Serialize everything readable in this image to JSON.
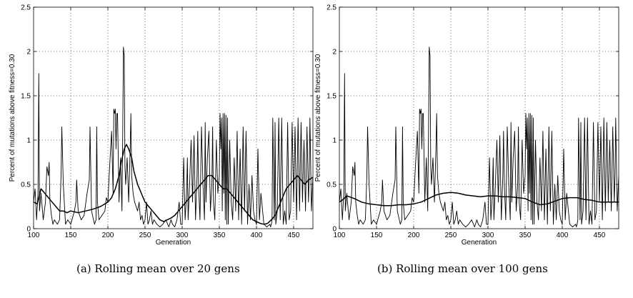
{
  "chart_data": [
    {
      "type": "line",
      "caption": "(a) Rolling mean over 20 gens",
      "xlabel": "Generation",
      "ylabel": "Percent of mutations above fitness=0.30",
      "xlim": [
        100,
        476
      ],
      "ylim": [
        0,
        2.5
      ],
      "xticks": [
        100,
        150,
        200,
        250,
        300,
        350,
        400,
        450
      ],
      "yticks": [
        0,
        0.5,
        1,
        1.5,
        2,
        2.5
      ],
      "ytick_labels": [
        "0",
        "0.5",
        "1",
        "1.5",
        "2",
        "2.5"
      ],
      "grid": true,
      "series": [
        {
          "x": [
            100,
            102,
            104,
            106,
            107,
            108,
            110,
            113,
            116,
            118,
            120,
            121,
            122,
            124,
            126,
            128,
            132,
            135,
            137,
            138,
            140,
            143,
            146,
            150,
            155,
            157,
            158,
            160,
            164,
            168,
            172,
            175,
            176,
            178,
            182,
            184,
            185,
            186,
            188,
            192,
            196,
            198,
            200,
            202,
            205,
            207,
            208,
            209,
            210,
            211,
            212,
            213,
            215,
            217,
            219,
            220,
            221,
            222,
            223,
            224,
            226,
            228,
            230,
            231,
            232,
            234,
            236,
            238,
            240,
            242,
            244,
            246,
            248,
            250,
            252,
            254,
            256,
            258,
            260,
            262,
            266,
            270,
            274,
            278,
            282,
            285,
            287,
            290,
            293,
            296,
            298,
            300,
            302,
            304,
            306,
            307,
            308,
            310,
            312,
            314,
            316,
            318,
            320,
            321,
            322,
            324,
            326,
            328,
            330,
            331,
            332,
            334,
            336,
            338,
            340,
            341,
            342,
            344,
            346,
            348,
            350,
            351,
            352,
            353,
            354,
            355,
            356,
            357,
            358,
            359,
            360,
            361,
            362,
            364,
            366,
            368,
            370,
            372,
            374,
            376,
            378,
            380,
            382,
            384,
            386,
            388,
            390,
            392,
            394,
            396,
            398,
            400,
            402,
            404,
            406,
            410,
            414,
            418,
            419,
            420,
            421,
            422,
            424,
            425,
            426,
            428,
            430,
            432,
            434,
            436,
            438,
            440,
            442,
            444,
            446,
            448,
            450,
            452,
            454,
            456,
            458,
            460,
            462,
            464,
            466,
            468,
            470,
            471,
            472,
            474,
            476
          ],
          "y": [
            0.3,
            0.45,
            0.1,
            0.4,
            1.75,
            0.2,
            0.4,
            0.1,
            0.3,
            0.7,
            0.6,
            0.75,
            0.3,
            0.15,
            0.05,
            0.1,
            0.05,
            0.1,
            0.6,
            1.15,
            0.5,
            0.05,
            0.1,
            0.05,
            0.2,
            0.3,
            0.55,
            0.2,
            0.1,
            0.15,
            0.4,
            0.55,
            1.15,
            0.2,
            0.05,
            0.1,
            1.15,
            0.3,
            0.1,
            0.15,
            0.2,
            0.35,
            0.3,
            0.65,
            1.1,
            0.4,
            1.35,
            1.3,
            1.35,
            0.9,
            1.3,
            1.3,
            0.3,
            0.8,
            0.2,
            1.1,
            2.05,
            1.95,
            0.7,
            0.5,
            0.8,
            0.3,
            0.9,
            1.3,
            0.6,
            0.4,
            0.3,
            0.25,
            0.2,
            0.3,
            0.1,
            0.15,
            0.05,
            0.1,
            0.3,
            0.05,
            0.1,
            0.2,
            0.05,
            0.1,
            0.05,
            0.02,
            0.05,
            0.1,
            0.02,
            0.1,
            0.05,
            0.02,
            0.1,
            0.3,
            0.05,
            0.05,
            0.8,
            0.1,
            0.4,
            0.8,
            0.1,
            0.5,
            1.0,
            0.3,
            1.05,
            0.1,
            0.6,
            1.1,
            0.5,
            0.1,
            1.15,
            0.5,
            0.1,
            1.2,
            0.3,
            0.8,
            1.1,
            0.2,
            0.5,
            1.15,
            0.3,
            0.1,
            1.0,
            0.4,
            0.6,
            1.3,
            0.9,
            1.25,
            0.2,
            1.3,
            0.4,
            1.3,
            0.1,
            1.28,
            0.05,
            1.25,
            0.05,
            1.0,
            0.3,
            0.1,
            0.8,
            0.2,
            1.1,
            0.1,
            0.9,
            0.05,
            1.15,
            0.2,
            1.1,
            0.05,
            0.5,
            0.1,
            0.6,
            0.2,
            0.1,
            0.05,
            0.9,
            0.1,
            0.4,
            0.05,
            0.02,
            0.05,
            0.02,
            0.05,
            0.1,
            1.25,
            0.1,
            1.2,
            0.05,
            0.2,
            1.25,
            0.1,
            1.25,
            0.05,
            0.2,
            0.05,
            1.2,
            0.1,
            0.2,
            1.2,
            0.3,
            1.15,
            0.1,
            1.25,
            0.2,
            1.2,
            0.3,
            1.0,
            0.2,
            1.15,
            0.3,
            0.6,
            1.25,
            0.2,
            0.6
          ]
        },
        {
          "x": [
            100,
            105,
            110,
            115,
            120,
            125,
            130,
            135,
            140,
            145,
            150,
            160,
            170,
            180,
            190,
            200,
            205,
            210,
            215,
            218,
            222,
            225,
            228,
            232,
            235,
            240,
            245,
            250,
            255,
            260,
            265,
            270,
            275,
            280,
            285,
            290,
            295,
            300,
            305,
            310,
            315,
            320,
            325,
            330,
            335,
            340,
            345,
            350,
            355,
            360,
            365,
            370,
            375,
            380,
            385,
            390,
            395,
            400,
            405,
            410,
            415,
            420,
            425,
            430,
            435,
            440,
            445,
            450,
            455,
            460,
            465,
            470,
            476
          ],
          "y": [
            0.3,
            0.28,
            0.45,
            0.4,
            0.35,
            0.3,
            0.25,
            0.2,
            0.2,
            0.18,
            0.2,
            0.18,
            0.2,
            0.22,
            0.25,
            0.3,
            0.35,
            0.45,
            0.6,
            0.75,
            0.9,
            0.95,
            0.9,
            0.8,
            0.65,
            0.5,
            0.4,
            0.3,
            0.25,
            0.2,
            0.15,
            0.1,
            0.08,
            0.1,
            0.12,
            0.15,
            0.2,
            0.25,
            0.3,
            0.35,
            0.4,
            0.45,
            0.5,
            0.55,
            0.6,
            0.6,
            0.55,
            0.5,
            0.45,
            0.45,
            0.4,
            0.35,
            0.3,
            0.25,
            0.2,
            0.15,
            0.1,
            0.08,
            0.06,
            0.05,
            0.06,
            0.1,
            0.15,
            0.25,
            0.35,
            0.45,
            0.5,
            0.55,
            0.6,
            0.55,
            0.5,
            0.55,
            0.58
          ]
        }
      ]
    },
    {
      "type": "line",
      "caption": "(b) Rolling mean over 100 gens",
      "xlabel": "Generation",
      "ylabel": "Percent of mutations above fitness=0.30",
      "xlim": [
        100,
        476
      ],
      "ylim": [
        0,
        2.5
      ],
      "xticks": [
        100,
        150,
        200,
        250,
        300,
        350,
        400,
        450
      ],
      "yticks": [
        0,
        0.5,
        1,
        1.5,
        2,
        2.5
      ],
      "ytick_labels": [
        "0",
        "0.5",
        "1",
        "1.5",
        "2",
        "2.5"
      ],
      "grid": true,
      "series": [
        {
          "x": [
            100,
            102,
            104,
            106,
            107,
            108,
            110,
            113,
            116,
            118,
            120,
            121,
            122,
            124,
            126,
            128,
            132,
            135,
            137,
            138,
            140,
            143,
            146,
            150,
            155,
            157,
            158,
            160,
            164,
            168,
            172,
            175,
            176,
            178,
            182,
            184,
            185,
            186,
            188,
            192,
            196,
            198,
            200,
            202,
            205,
            207,
            208,
            209,
            210,
            211,
            212,
            213,
            215,
            217,
            219,
            220,
            221,
            222,
            223,
            224,
            226,
            228,
            230,
            231,
            232,
            234,
            236,
            238,
            240,
            242,
            244,
            246,
            248,
            250,
            252,
            254,
            256,
            258,
            260,
            262,
            266,
            270,
            274,
            278,
            282,
            285,
            287,
            290,
            293,
            296,
            298,
            300,
            302,
            304,
            306,
            307,
            308,
            310,
            312,
            314,
            316,
            318,
            320,
            321,
            322,
            324,
            326,
            328,
            330,
            331,
            332,
            334,
            336,
            338,
            340,
            341,
            342,
            344,
            346,
            348,
            350,
            351,
            352,
            353,
            354,
            355,
            356,
            357,
            358,
            359,
            360,
            361,
            362,
            364,
            366,
            368,
            370,
            372,
            374,
            376,
            378,
            380,
            382,
            384,
            386,
            388,
            390,
            392,
            394,
            396,
            398,
            400,
            402,
            404,
            406,
            410,
            414,
            418,
            419,
            420,
            421,
            422,
            424,
            425,
            426,
            428,
            430,
            432,
            434,
            436,
            438,
            440,
            442,
            444,
            446,
            448,
            450,
            452,
            454,
            456,
            458,
            460,
            462,
            464,
            466,
            468,
            470,
            471,
            472,
            474,
            476
          ],
          "y": [
            0.3,
            0.45,
            0.1,
            0.4,
            1.75,
            0.2,
            0.4,
            0.1,
            0.3,
            0.7,
            0.6,
            0.75,
            0.3,
            0.15,
            0.05,
            0.1,
            0.05,
            0.1,
            0.6,
            1.15,
            0.5,
            0.05,
            0.1,
            0.05,
            0.2,
            0.3,
            0.55,
            0.2,
            0.1,
            0.15,
            0.4,
            0.55,
            1.15,
            0.2,
            0.05,
            0.1,
            1.15,
            0.3,
            0.1,
            0.15,
            0.2,
            0.35,
            0.3,
            0.65,
            1.1,
            0.4,
            1.35,
            1.3,
            1.35,
            0.9,
            1.3,
            1.3,
            0.3,
            0.8,
            0.2,
            1.1,
            2.05,
            1.95,
            0.7,
            0.5,
            0.8,
            0.3,
            0.9,
            1.3,
            0.6,
            0.4,
            0.3,
            0.25,
            0.2,
            0.3,
            0.1,
            0.15,
            0.05,
            0.1,
            0.3,
            0.05,
            0.1,
            0.2,
            0.05,
            0.1,
            0.05,
            0.02,
            0.05,
            0.1,
            0.02,
            0.1,
            0.05,
            0.02,
            0.1,
            0.3,
            0.05,
            0.05,
            0.8,
            0.1,
            0.4,
            0.8,
            0.1,
            0.5,
            1.0,
            0.3,
            1.05,
            0.1,
            0.6,
            1.1,
            0.5,
            0.1,
            1.15,
            0.5,
            0.1,
            1.2,
            0.3,
            0.8,
            1.1,
            0.2,
            0.5,
            1.15,
            0.3,
            0.1,
            1.0,
            0.4,
            0.6,
            1.3,
            0.9,
            1.25,
            0.2,
            1.3,
            0.4,
            1.3,
            0.1,
            1.28,
            0.05,
            1.25,
            0.05,
            1.0,
            0.3,
            0.1,
            0.8,
            0.2,
            1.1,
            0.1,
            0.9,
            0.05,
            1.15,
            0.2,
            1.1,
            0.05,
            0.5,
            0.1,
            0.6,
            0.2,
            0.1,
            0.05,
            0.9,
            0.1,
            0.4,
            0.05,
            0.02,
            0.05,
            0.02,
            0.05,
            0.1,
            1.25,
            0.1,
            1.2,
            0.05,
            0.2,
            1.25,
            0.1,
            1.25,
            0.05,
            0.2,
            0.05,
            1.2,
            0.1,
            0.2,
            1.2,
            0.3,
            1.15,
            0.1,
            1.25,
            0.2,
            1.2,
            0.3,
            1.0,
            0.2,
            1.15,
            0.3,
            0.6,
            1.25,
            0.2,
            0.6
          ]
        },
        {
          "x": [
            100,
            105,
            110,
            120,
            130,
            140,
            150,
            160,
            170,
            180,
            190,
            200,
            210,
            220,
            230,
            240,
            250,
            260,
            270,
            280,
            290,
            300,
            310,
            320,
            330,
            340,
            350,
            360,
            370,
            380,
            390,
            400,
            410,
            420,
            430,
            440,
            450,
            460,
            470,
            476
          ],
          "y": [
            0.3,
            0.33,
            0.37,
            0.34,
            0.3,
            0.28,
            0.27,
            0.26,
            0.26,
            0.27,
            0.27,
            0.28,
            0.3,
            0.34,
            0.38,
            0.4,
            0.41,
            0.4,
            0.38,
            0.37,
            0.36,
            0.37,
            0.37,
            0.36,
            0.36,
            0.35,
            0.34,
            0.3,
            0.27,
            0.28,
            0.31,
            0.34,
            0.35,
            0.35,
            0.33,
            0.32,
            0.3,
            0.3,
            0.3,
            0.3
          ]
        }
      ]
    }
  ]
}
